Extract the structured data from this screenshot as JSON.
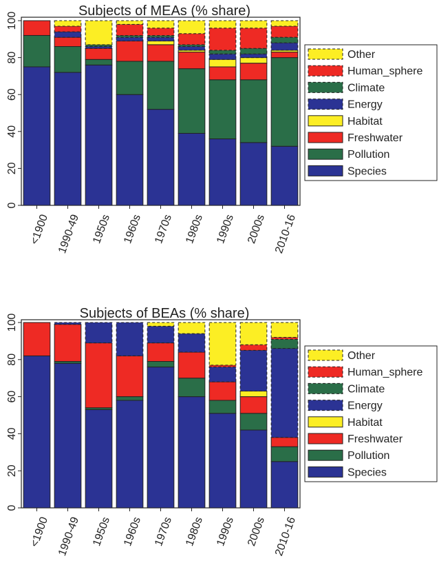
{
  "chart_data": [
    {
      "type": "bar",
      "stacked": true,
      "title": "Subjects of MEAs (% share)",
      "categories": [
        "<1900",
        "1990-49",
        "1950s",
        "1960s",
        "1970s",
        "1980s",
        "1990s",
        "2000s",
        "2010-16"
      ],
      "ylim": [
        0,
        100
      ],
      "yticks": [
        0,
        20,
        40,
        60,
        80,
        100
      ],
      "grid": false,
      "legend_position": "right",
      "series": [
        {
          "name": "Species",
          "key": "species",
          "values": [
            75,
            72,
            76,
            60,
            52,
            39,
            36,
            34,
            32
          ]
        },
        {
          "name": "Pollution",
          "key": "pollution",
          "values": [
            17,
            14,
            3,
            18,
            26,
            35,
            32,
            34,
            48
          ]
        },
        {
          "name": "Freshwater",
          "key": "freshwater",
          "values": [
            8,
            5,
            6,
            11,
            9,
            9,
            7,
            9,
            3
          ]
        },
        {
          "name": "Habitat",
          "key": "habitat",
          "values": [
            0,
            0,
            0,
            0,
            2,
            1,
            4,
            3,
            1
          ]
        },
        {
          "name": "Energy",
          "key": "energy",
          "values": [
            0,
            3,
            1,
            2,
            2,
            2,
            3,
            2,
            4
          ]
        },
        {
          "name": "Climate",
          "key": "climate",
          "values": [
            0,
            0,
            1,
            1,
            1,
            1,
            2,
            3,
            3
          ]
        },
        {
          "name": "Human_sphere",
          "key": "human_sphere",
          "values": [
            0,
            3,
            0,
            6,
            4,
            6,
            12,
            11,
            6
          ]
        },
        {
          "name": "Other",
          "key": "other",
          "values": [
            0,
            3,
            13,
            2,
            4,
            7,
            4,
            4,
            3
          ]
        }
      ]
    },
    {
      "type": "bar",
      "stacked": true,
      "title": "Subjects of BEAs (% share)",
      "categories": [
        "<1900",
        "1990-49",
        "1950s",
        "1960s",
        "1970s",
        "1980s",
        "1990s",
        "2000s",
        "2010-16"
      ],
      "ylim": [
        0,
        100
      ],
      "yticks": [
        0,
        20,
        40,
        60,
        80,
        100
      ],
      "grid": false,
      "legend_position": "right",
      "series": [
        {
          "name": "Species",
          "key": "species",
          "values": [
            82,
            78,
            53,
            58,
            76,
            60,
            51,
            42,
            25
          ]
        },
        {
          "name": "Pollution",
          "key": "pollution",
          "values": [
            0,
            1,
            1,
            2,
            3,
            10,
            7,
            9,
            8
          ]
        },
        {
          "name": "Freshwater",
          "key": "freshwater",
          "values": [
            18,
            20,
            35,
            22,
            10,
            14,
            10,
            9,
            5
          ]
        },
        {
          "name": "Habitat",
          "key": "habitat",
          "values": [
            0,
            0,
            0,
            0,
            0,
            0,
            0,
            3,
            0
          ]
        },
        {
          "name": "Energy",
          "key": "energy",
          "values": [
            0,
            1,
            11,
            18,
            9,
            10,
            8,
            22,
            48
          ]
        },
        {
          "name": "Climate",
          "key": "climate",
          "values": [
            0,
            0,
            0,
            0,
            0,
            0,
            0,
            0,
            5
          ]
        },
        {
          "name": "Human_sphere",
          "key": "human_sphere",
          "values": [
            0,
            0,
            0,
            0,
            0,
            0,
            1,
            3,
            1
          ]
        },
        {
          "name": "Other",
          "key": "other",
          "values": [
            0,
            0,
            0,
            0,
            2,
            6,
            23,
            12,
            8
          ]
        }
      ]
    }
  ],
  "legend_order": [
    "other",
    "human_sphere",
    "climate",
    "energy",
    "habitat",
    "freshwater",
    "pollution",
    "species"
  ],
  "colors": {
    "species": "#2b3394",
    "pollution": "#2a6e48",
    "freshwater": "#ee2a24",
    "habitat": "#fcee24",
    "energy": "#2b3394",
    "climate": "#2a6e48",
    "human_sphere": "#ee2a24",
    "other": "#fcee24"
  },
  "dashed_series": [
    "energy",
    "climate",
    "human_sphere",
    "other"
  ]
}
